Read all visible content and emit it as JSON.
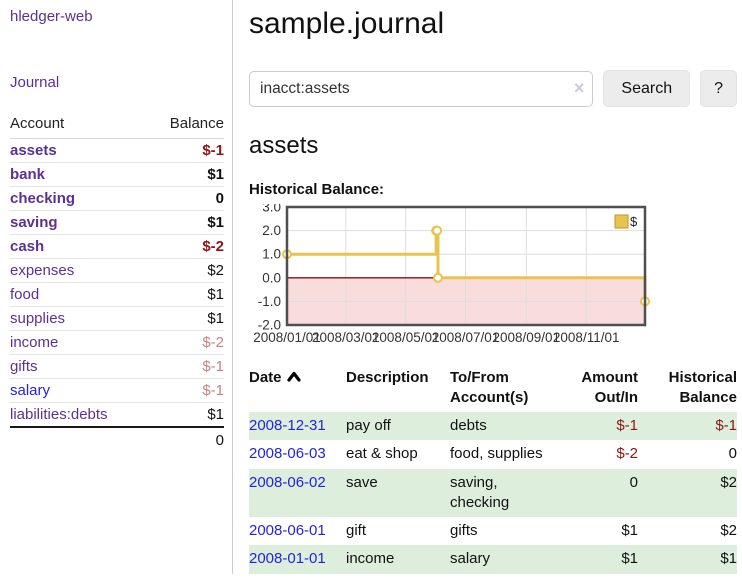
{
  "sidebar": {
    "brand": "hledger-web",
    "nav": [
      {
        "label": "Journal"
      }
    ],
    "accounts_table": {
      "col_account": "Account",
      "col_balance": "Balance",
      "rows": [
        {
          "name": "assets",
          "depth": 1,
          "bold": true,
          "balance": "$-1",
          "balance_class": "neg-strong",
          "link": "purple"
        },
        {
          "name": "bank",
          "depth": 2,
          "bold": true,
          "balance": "$1",
          "balance_class": "",
          "link": "purple"
        },
        {
          "name": "checking",
          "depth": 3,
          "bold": true,
          "balance": "0",
          "balance_class": "",
          "link": "purple"
        },
        {
          "name": "saving",
          "depth": 3,
          "bold": true,
          "balance": "$1",
          "balance_class": "",
          "link": "purple"
        },
        {
          "name": "cash",
          "depth": 2,
          "bold": true,
          "balance": "$-2",
          "balance_class": "neg-strong",
          "link": "purple"
        },
        {
          "name": "expenses",
          "depth": 1,
          "bold": false,
          "balance": "$2",
          "balance_class": "",
          "link": "purple"
        },
        {
          "name": "food",
          "depth": 2,
          "bold": false,
          "balance": "$1",
          "balance_class": "",
          "link": "purple"
        },
        {
          "name": "supplies",
          "depth": 2,
          "bold": false,
          "balance": "$1",
          "balance_class": "",
          "link": "purple"
        },
        {
          "name": "income",
          "depth": 1,
          "bold": false,
          "balance": "$-2",
          "balance_class": "neg-faded",
          "link": "purple"
        },
        {
          "name": "gifts",
          "depth": 2,
          "bold": false,
          "balance": "$-1",
          "balance_class": "neg-faded",
          "link": "purple"
        },
        {
          "name": "salary",
          "depth": 2,
          "bold": false,
          "balance": "$-1",
          "balance_class": "neg-faded",
          "link": "blue"
        },
        {
          "name": "liabilities:debts",
          "depth": 1,
          "bold": false,
          "balance": "$1",
          "balance_class": "",
          "link": "purple"
        }
      ],
      "total": "0"
    }
  },
  "main": {
    "title": "sample.journal",
    "search": {
      "value": "inacct:assets",
      "clear": "×",
      "search_label": "Search",
      "help_label": "?"
    },
    "account_heading": "assets",
    "chart_title": "Historical Balance:"
  },
  "chart_data": {
    "type": "line",
    "subtype": "step",
    "title": "Historical Balance:",
    "x_ticks": [
      "2008/01/01",
      "2008/03/01",
      "2008/05/01",
      "2008/07/01",
      "2008/09/01",
      "2008/11/01"
    ],
    "y_ticks": [
      "3.0",
      "2.0",
      "1.0",
      "0.0",
      "-1.0",
      "-2.0"
    ],
    "xlim": [
      "2008-01-01",
      "2008-12-31"
    ],
    "ylim": [
      -2,
      3
    ],
    "grid": true,
    "legend_position": "top-right",
    "series": [
      {
        "name": "$",
        "points": [
          {
            "x": "2008-01-01",
            "y": 1
          },
          {
            "x": "2008-06-01",
            "y": 2
          },
          {
            "x": "2008-06-02",
            "y": 2
          },
          {
            "x": "2008-06-03",
            "y": 0
          },
          {
            "x": "2008-12-31",
            "y": -1
          }
        ]
      }
    ],
    "colors": {
      "line": "#e8c44e",
      "marker_fill": "#ffffff",
      "negative_bg": "#f9dcdc",
      "zero_line": "#8e0f0f",
      "grid": "#dddddd",
      "border": "#4f4f4f",
      "label": "#333333"
    }
  },
  "register": {
    "headers": {
      "date": "Date",
      "description": "Description",
      "accounts": "To/From Account(s)",
      "amount": "Amount Out/In",
      "balance": "Historical Balance"
    },
    "rows": [
      {
        "date": "2008-12-31",
        "description": "pay off",
        "accounts": "debts",
        "amount": "$-1",
        "balance": "$-1"
      },
      {
        "date": "2008-06-03",
        "description": "eat & shop",
        "accounts": "food, supplies",
        "amount": "$-2",
        "balance": "0"
      },
      {
        "date": "2008-06-02",
        "description": "save",
        "accounts": "saving, checking",
        "amount": "0",
        "balance": "$2"
      },
      {
        "date": "2008-06-01",
        "description": "gift",
        "accounts": "gifts",
        "amount": "$1",
        "balance": "$2"
      },
      {
        "date": "2008-01-01",
        "description": "income",
        "accounts": "salary",
        "amount": "$1",
        "balance": "$1"
      }
    ]
  }
}
